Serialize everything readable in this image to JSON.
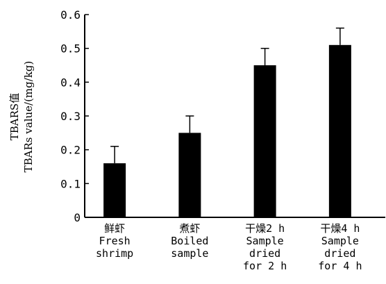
{
  "chart_data": {
    "type": "bar",
    "title": "",
    "ylabel_lines": [
      "TBARS值",
      "TBARs value/(mg/kg)"
    ],
    "xlabel": "",
    "ylim": [
      0,
      0.6
    ],
    "yticks": [
      "0",
      "0.1",
      "0.2",
      "0.3",
      "0.4",
      "0.5",
      "0.6"
    ],
    "grid": false,
    "categories": [
      {
        "lines": [
          "鲜虾",
          "Fresh",
          "shrimp"
        ]
      },
      {
        "lines": [
          "煮虾",
          "Boiled",
          "sample"
        ]
      },
      {
        "lines": [
          "干燥2 h",
          "Sample",
          "dried",
          "for 2 h"
        ]
      },
      {
        "lines": [
          "干燥4 h",
          "Sample",
          "dried",
          "for 4 h"
        ]
      }
    ],
    "values": [
      0.16,
      0.25,
      0.45,
      0.51
    ],
    "errors": [
      0.05,
      0.05,
      0.05,
      0.05
    ],
    "colors": {
      "bar": "#000000",
      "axis": "#000000"
    }
  }
}
